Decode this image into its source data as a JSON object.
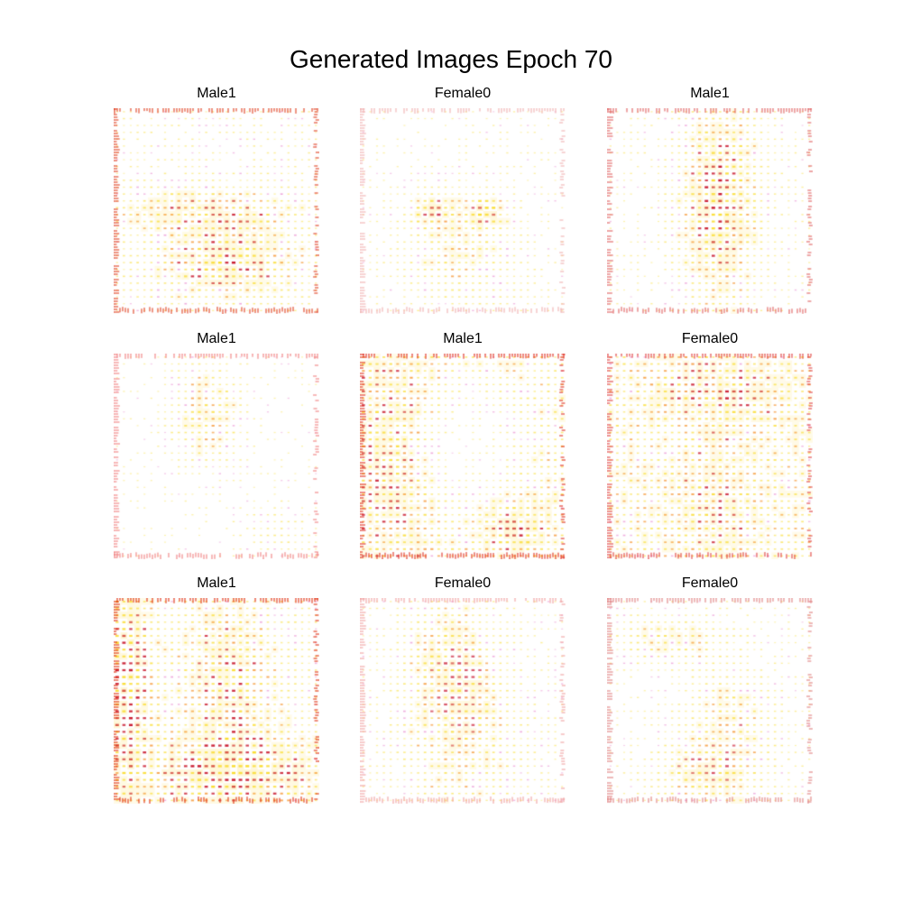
{
  "figure": {
    "title": "Generated Images Epoch 70",
    "panels": [
      {
        "label": "Male1",
        "palette": "warm-hot",
        "pattern": "center-band-lower",
        "edge_color": "#e04020"
      },
      {
        "label": "Female0",
        "palette": "warm-light",
        "pattern": "eyes-sparse",
        "edge_color": "#f0b0b0"
      },
      {
        "label": "Male1",
        "palette": "warm-hot",
        "pattern": "center-column",
        "edge_color": "#e06060"
      },
      {
        "label": "Male1",
        "palette": "warm-light",
        "pattern": "sparse-center",
        "edge_color": "#f08080"
      },
      {
        "label": "Male1",
        "palette": "warm-hot",
        "pattern": "dense-rows",
        "edge_color": "#e03020"
      },
      {
        "label": "Female0",
        "palette": "warm-hot",
        "pattern": "dense-rows-center",
        "edge_color": "#e04040"
      },
      {
        "label": "Male1",
        "palette": "warm-hot",
        "pattern": "dense-left-heavy",
        "edge_color": "#e03010"
      },
      {
        "label": "Female0",
        "palette": "warm-light",
        "pattern": "center-column-light",
        "edge_color": "#f0a0a0"
      },
      {
        "label": "Female0",
        "palette": "warm-light",
        "pattern": "center-lower",
        "edge_color": "#e08080"
      }
    ]
  }
}
